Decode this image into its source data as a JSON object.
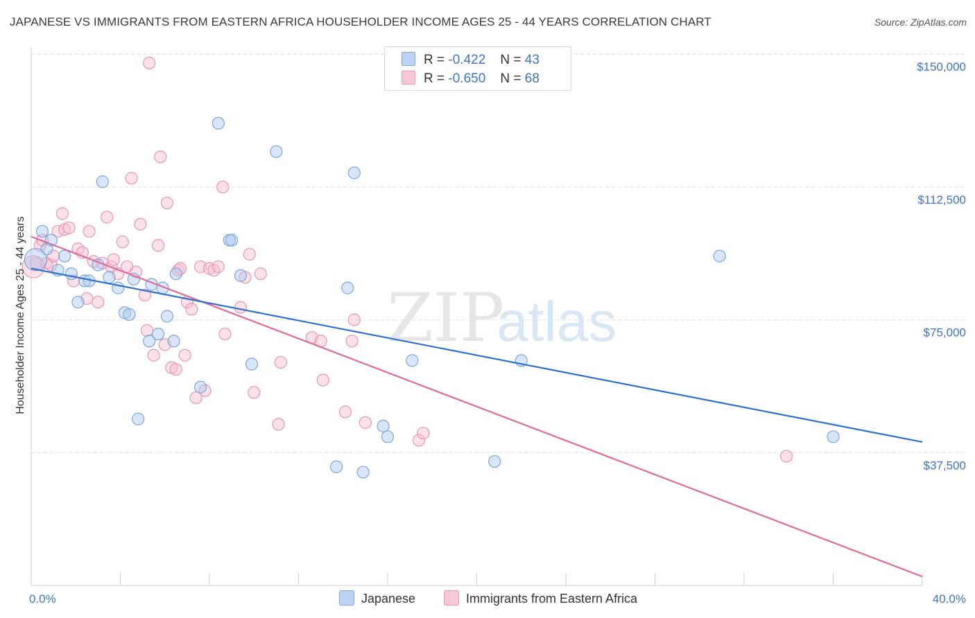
{
  "header": {
    "title": "JAPANESE VS IMMIGRANTS FROM EASTERN AFRICA HOUSEHOLDER INCOME AGES 25 - 44 YEARS CORRELATION CHART",
    "source": "Source: ZipAtlas.com"
  },
  "watermark": {
    "zip": "ZIP",
    "atlas": "atlas"
  },
  "legend": {
    "rows": [
      {
        "r_label": "R =",
        "r_value": "-0.422",
        "n_label": "N =",
        "n_value": "43"
      },
      {
        "r_label": "R =",
        "r_value": "-0.650",
        "n_label": "N =",
        "n_value": "68"
      }
    ]
  },
  "bottom_legend": {
    "japanese": "Japanese",
    "eastern_africa": "Immigrants from Eastern Africa"
  },
  "colors": {
    "japanese_fill": "#aac8f0",
    "japanese_stroke": "#7aa6df",
    "japanese_line": "#2f6fd0",
    "africa_fill": "#f7bcd0",
    "africa_stroke": "#e995b3",
    "africa_line": "#e06a98",
    "tick_text": "#3d74c4",
    "grid": "#e2e2e2"
  },
  "chart_data": {
    "type": "scatter",
    "title": "JAPANESE VS IMMIGRANTS FROM EASTERN AFRICA HOUSEHOLDER INCOME AGES 25 - 44 YEARS CORRELATION CHART",
    "xlabel": "",
    "ylabel": "Householder Income Ages 25 - 44 years",
    "xlim": [
      0,
      40
    ],
    "ylim": [
      0,
      152000
    ],
    "x_tick_labels": [
      "0.0%",
      "40.0%"
    ],
    "y_ticks": [
      37500,
      75000,
      112500,
      150000
    ],
    "y_tick_labels": [
      "$37,500",
      "$75,000",
      "$112,500",
      "$150,000"
    ],
    "grid": true,
    "legend_position": "top-center",
    "series": [
      {
        "name": "Japanese",
        "r": -0.422,
        "n": 43,
        "trend": {
          "x": [
            0,
            40
          ],
          "y": [
            89500,
            40500
          ]
        },
        "points": [
          [
            0.5,
            100000
          ],
          [
            0.7,
            95000
          ],
          [
            0.9,
            97500
          ],
          [
            1.2,
            89000
          ],
          [
            1.5,
            93000
          ],
          [
            1.8,
            88000
          ],
          [
            2.1,
            80000
          ],
          [
            2.4,
            86000
          ],
          [
            2.6,
            86000
          ],
          [
            3.0,
            90500
          ],
          [
            3.2,
            114000
          ],
          [
            3.5,
            87000
          ],
          [
            3.9,
            84000
          ],
          [
            4.2,
            77000
          ],
          [
            4.4,
            76500
          ],
          [
            4.6,
            86500
          ],
          [
            4.8,
            47000
          ],
          [
            5.3,
            69000
          ],
          [
            5.4,
            85000
          ],
          [
            5.7,
            71000
          ],
          [
            5.9,
            84000
          ],
          [
            6.1,
            76000
          ],
          [
            6.4,
            69000
          ],
          [
            6.5,
            88000
          ],
          [
            7.6,
            56000
          ],
          [
            8.4,
            130500
          ],
          [
            8.9,
            97500
          ],
          [
            9.0,
            97500
          ],
          [
            9.4,
            87500
          ],
          [
            9.9,
            62500
          ],
          [
            11.0,
            122500
          ],
          [
            13.7,
            33500
          ],
          [
            14.2,
            84000
          ],
          [
            14.5,
            116500
          ],
          [
            14.9,
            32000
          ],
          [
            15.8,
            45000
          ],
          [
            16.0,
            42000
          ],
          [
            17.1,
            63500
          ],
          [
            20.8,
            35000
          ],
          [
            22.0,
            63500
          ],
          [
            30.9,
            93000
          ],
          [
            36.0,
            42000
          ],
          [
            0.2,
            92000
          ]
        ]
      },
      {
        "name": "Immigrants from Eastern Africa",
        "r": -0.65,
        "n": 68,
        "trend": {
          "x": [
            0,
            40
          ],
          "y": [
            98500,
            2500
          ]
        },
        "points": [
          [
            0.2,
            91000
          ],
          [
            0.4,
            96000
          ],
          [
            0.5,
            97500
          ],
          [
            0.7,
            91000
          ],
          [
            0.9,
            90500
          ],
          [
            1.0,
            93000
          ],
          [
            1.2,
            100000
          ],
          [
            1.4,
            105000
          ],
          [
            1.5,
            100500
          ],
          [
            1.7,
            101000
          ],
          [
            1.9,
            86000
          ],
          [
            2.1,
            95000
          ],
          [
            2.3,
            94000
          ],
          [
            2.5,
            81000
          ],
          [
            2.6,
            100000
          ],
          [
            2.8,
            91500
          ],
          [
            3.0,
            80000
          ],
          [
            3.2,
            91000
          ],
          [
            3.4,
            104000
          ],
          [
            3.6,
            90000
          ],
          [
            3.7,
            92000
          ],
          [
            3.9,
            88000
          ],
          [
            4.1,
            97000
          ],
          [
            4.3,
            90000
          ],
          [
            4.5,
            115000
          ],
          [
            4.7,
            88500
          ],
          [
            4.9,
            102000
          ],
          [
            5.1,
            82000
          ],
          [
            5.2,
            72000
          ],
          [
            5.3,
            147500
          ],
          [
            5.5,
            65000
          ],
          [
            5.7,
            96000
          ],
          [
            5.8,
            121000
          ],
          [
            6.0,
            68000
          ],
          [
            6.1,
            108000
          ],
          [
            6.3,
            61500
          ],
          [
            6.5,
            61000
          ],
          [
            6.6,
            89000
          ],
          [
            6.7,
            89500
          ],
          [
            6.9,
            65000
          ],
          [
            7.0,
            80000
          ],
          [
            7.2,
            78000
          ],
          [
            7.4,
            53000
          ],
          [
            7.6,
            90000
          ],
          [
            7.8,
            55000
          ],
          [
            8.0,
            89500
          ],
          [
            8.2,
            89000
          ],
          [
            8.4,
            90000
          ],
          [
            8.6,
            112500
          ],
          [
            8.7,
            71000
          ],
          [
            9.4,
            78500
          ],
          [
            9.6,
            87000
          ],
          [
            9.8,
            93500
          ],
          [
            10.0,
            54500
          ],
          [
            10.3,
            88000
          ],
          [
            11.1,
            45500
          ],
          [
            11.2,
            63000
          ],
          [
            12.6,
            70000
          ],
          [
            13.0,
            69000
          ],
          [
            13.1,
            58000
          ],
          [
            14.1,
            49000
          ],
          [
            14.4,
            69000
          ],
          [
            14.5,
            75000
          ],
          [
            15.0,
            46000
          ],
          [
            17.4,
            41000
          ],
          [
            17.6,
            43000
          ],
          [
            33.9,
            36500
          ],
          [
            0.1,
            90000
          ]
        ]
      }
    ]
  }
}
